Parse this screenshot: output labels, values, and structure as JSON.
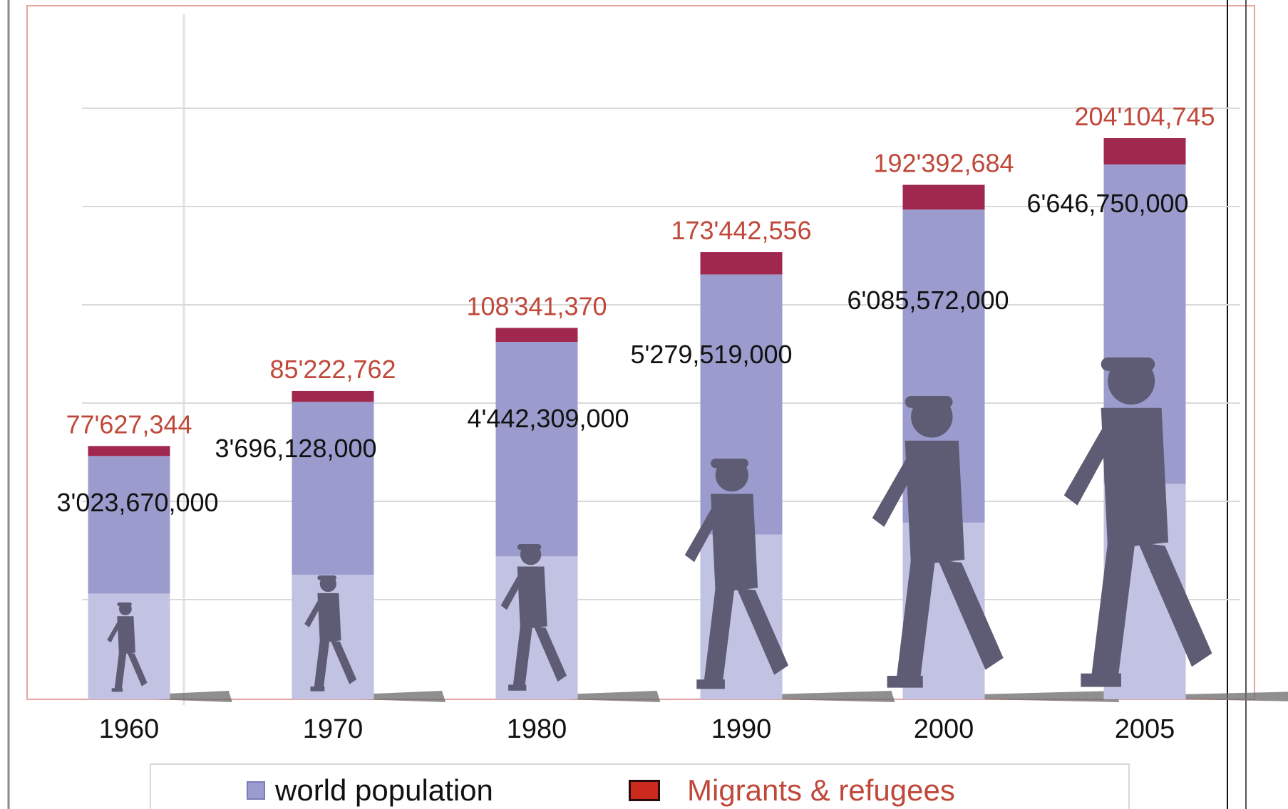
{
  "chart_data": {
    "type": "bar",
    "categories": [
      "1960",
      "1970",
      "1980",
      "1990",
      "2000",
      "2005"
    ],
    "series": [
      {
        "name": "world population",
        "values": [
          3023670000,
          3696128000,
          4442309000,
          5279519000,
          6085572000,
          6646750000
        ],
        "labels": [
          "3'023,670,000",
          "3'696,128,000",
          "4'442,309,000",
          "5'279,519,000",
          "6'085,572,000",
          "6'646,750,000"
        ],
        "color": "#9b9ccd"
      },
      {
        "name": "Migrants & refugees",
        "values": [
          77627344,
          85222762,
          108341370,
          173442556,
          192392684,
          204104745
        ],
        "labels": [
          "77'627,344",
          "85'222,762",
          "108'341,370",
          "173'442,556",
          "192'392,684",
          "204'104,745"
        ],
        "color": "#a0284f"
      }
    ],
    "grid": true,
    "legend": "bottom",
    "colors": {
      "migrant_label": "#c0483a",
      "legend_migrant_swatch": "#cc2a1f",
      "bar_lower": "#c2c3e3",
      "silhouette": "#5e5c74",
      "frame": "#e4a4a0"
    }
  }
}
